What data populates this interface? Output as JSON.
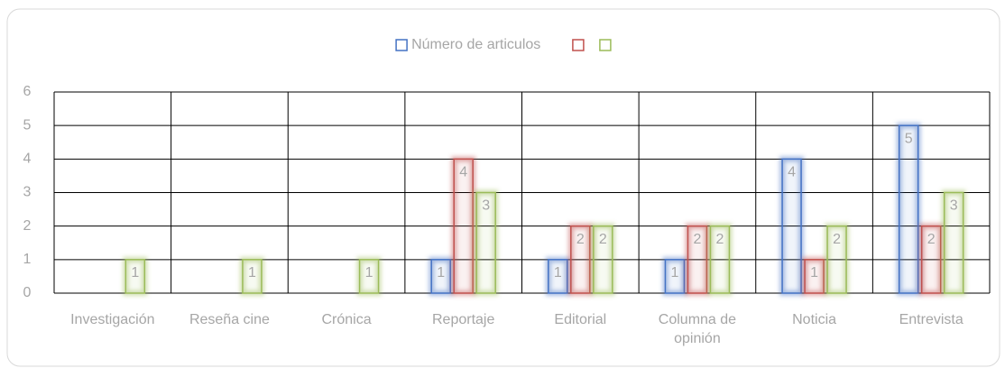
{
  "chart_data": {
    "type": "bar",
    "categories": [
      "Investigación",
      "Reseña cine",
      "Crónica",
      "Reportaje",
      "Editorial",
      "Columna de opinión",
      "Noticia",
      "Entrevista"
    ],
    "series": [
      {
        "name": "Número de articulos",
        "color": "#4472c4",
        "values": [
          null,
          null,
          null,
          1,
          1,
          1,
          4,
          5
        ]
      },
      {
        "color": "#c0504d",
        "values": [
          null,
          null,
          null,
          4,
          2,
          2,
          1,
          2
        ]
      },
      {
        "color": "#9bbb59",
        "values": [
          1,
          1,
          1,
          3,
          2,
          2,
          2,
          3
        ]
      }
    ],
    "ylim": [
      0,
      6
    ],
    "yticks": [
      0,
      1,
      2,
      3,
      4,
      5,
      6
    ],
    "grid": true,
    "legend": "top"
  }
}
